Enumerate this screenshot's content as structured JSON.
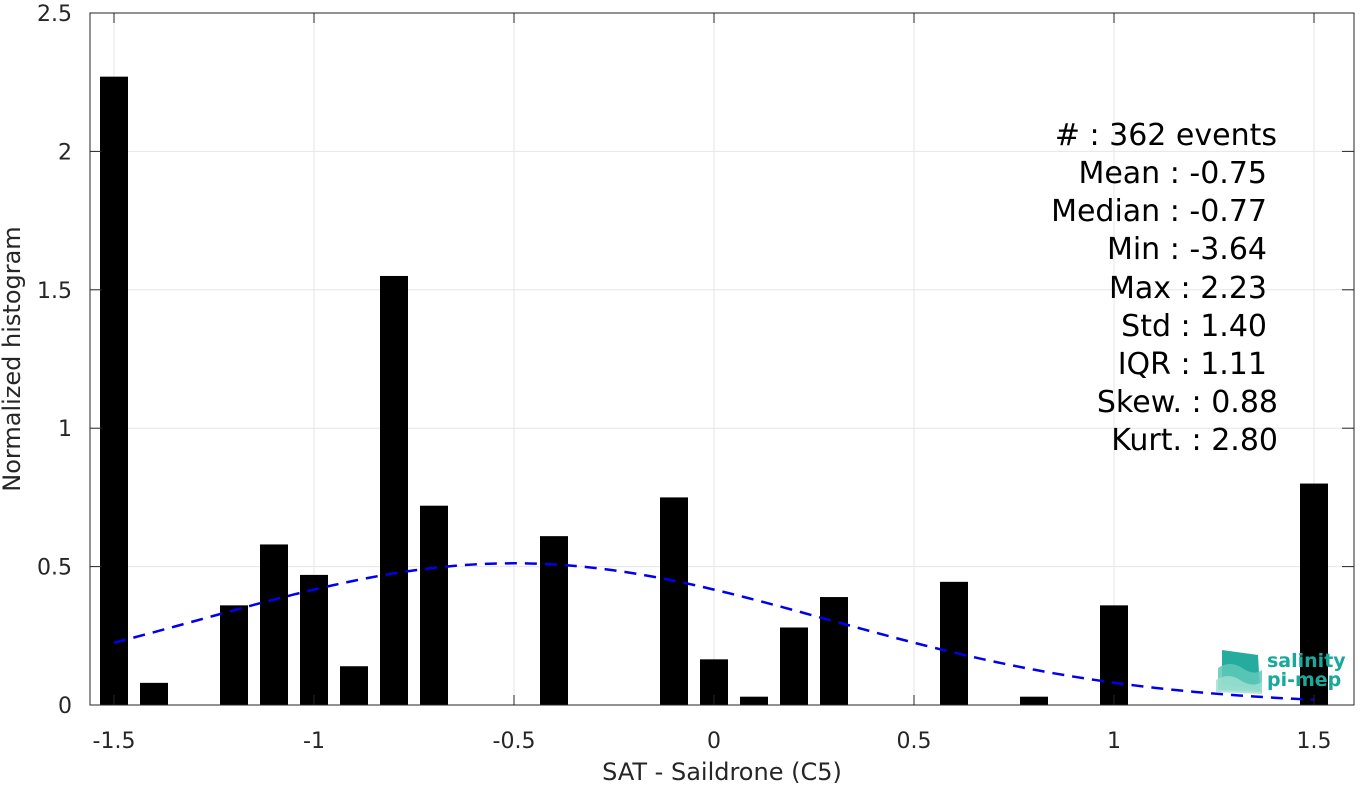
{
  "chart_data": {
    "type": "bar",
    "xlabel": "SAT - Saildrone (C5)",
    "ylabel": "Normalized histogram",
    "xlim": [
      -1.56,
      1.6
    ],
    "ylim": [
      0,
      2.5
    ],
    "xticks": [
      -1.5,
      -1,
      -0.5,
      0,
      0.5,
      1,
      1.5
    ],
    "xtick_labels": [
      "-1.5",
      "-1",
      "-0.5",
      "0",
      "0.5",
      "1",
      "1.5"
    ],
    "yticks": [
      0,
      0.5,
      1,
      1.5,
      2,
      2.5
    ],
    "ytick_labels": [
      "0",
      "0.5",
      "1",
      "1.5",
      "2",
      "2.5"
    ],
    "grid": true,
    "bar_width": 0.07,
    "bars": [
      {
        "x": -1.5,
        "y": 2.27
      },
      {
        "x": -1.4,
        "y": 0.08
      },
      {
        "x": -1.2,
        "y": 0.36
      },
      {
        "x": -1.1,
        "y": 0.58
      },
      {
        "x": -1.0,
        "y": 0.47
      },
      {
        "x": -0.9,
        "y": 0.14
      },
      {
        "x": -0.8,
        "y": 1.55
      },
      {
        "x": -0.7,
        "y": 0.72
      },
      {
        "x": -0.4,
        "y": 0.61
      },
      {
        "x": -0.1,
        "y": 0.75
      },
      {
        "x": 0.0,
        "y": 0.165
      },
      {
        "x": 0.1,
        "y": 0.03
      },
      {
        "x": 0.2,
        "y": 0.28
      },
      {
        "x": 0.3,
        "y": 0.39
      },
      {
        "x": 0.6,
        "y": 0.445
      },
      {
        "x": 0.8,
        "y": 0.03
      },
      {
        "x": 1.0,
        "y": 0.36
      },
      {
        "x": 1.5,
        "y": 0.8
      }
    ],
    "fit_curve": {
      "style": "dashed",
      "color": "#0000ee",
      "mean": -0.5,
      "sigma": 0.78,
      "x_start": -1.5,
      "x_end": 1.5,
      "peak": 0.512
    },
    "bar_color": "#000000"
  },
  "stats": {
    "events": "#  : 362 events",
    "mean": "Mean : -0.75",
    "median": "Median : -0.77",
    "min": "Min : -3.64",
    "max": "Max : 2.23",
    "std": "Std : 1.40",
    "iqr": "IQR : 1.11",
    "skew": "Skew. : 0.88",
    "kurt": "Kurt. : 2.80"
  },
  "logo": {
    "line1": "salinity",
    "line2": "pi-mep",
    "color": "#1aa89a"
  }
}
